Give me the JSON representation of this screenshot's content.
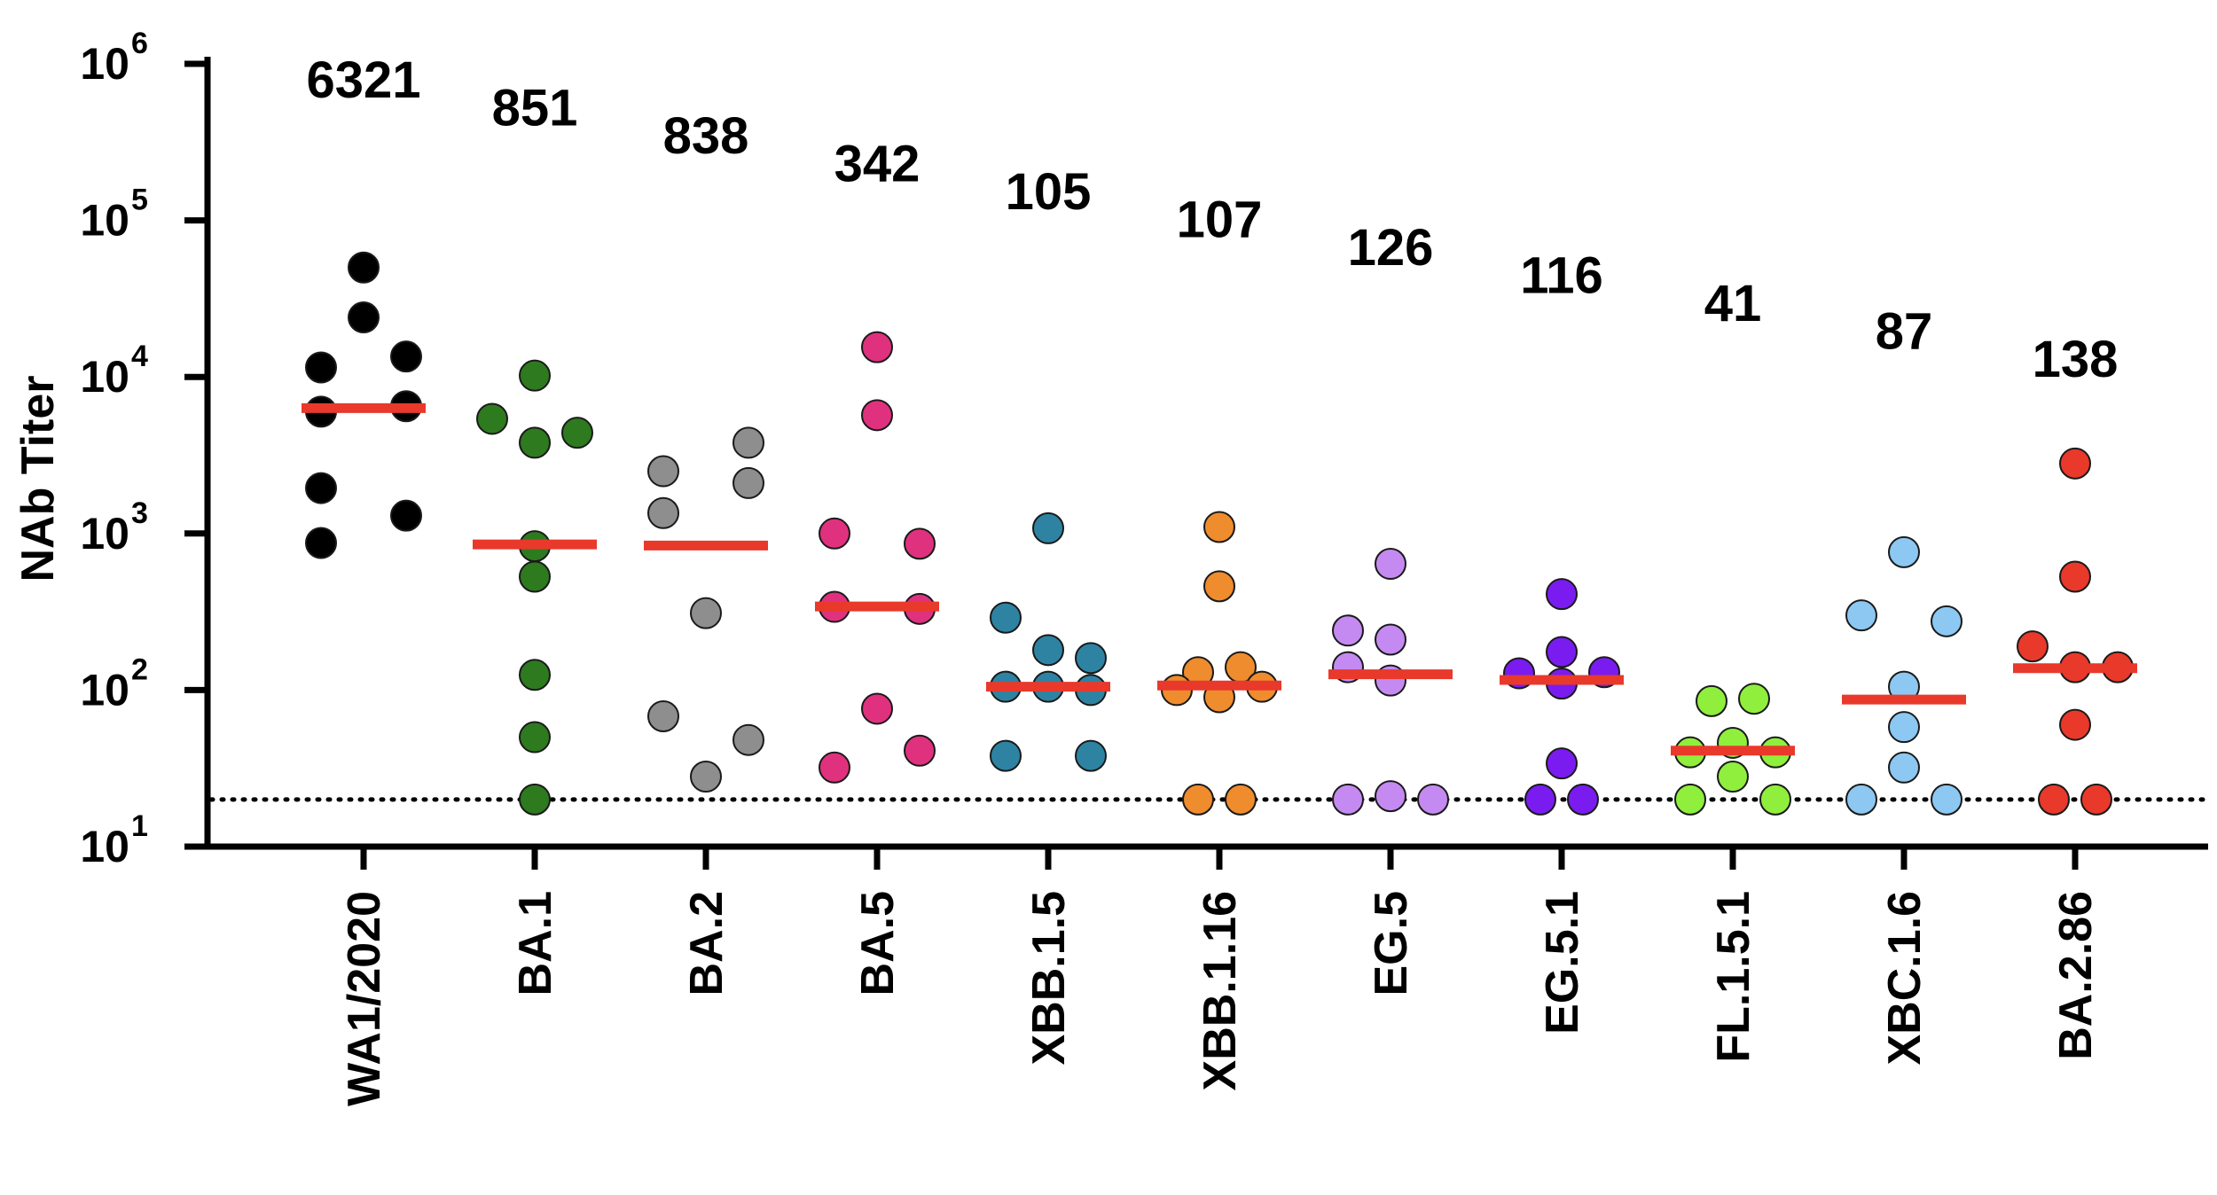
{
  "chart_data": {
    "type": "scatter",
    "ylabel": "NAb Titer",
    "y_scale": "log10",
    "ylim": [
      10,
      1000000
    ],
    "y_ticks": [
      {
        "value": 10,
        "base": "10",
        "exp": "1"
      },
      {
        "value": 100,
        "base": "10",
        "exp": "2"
      },
      {
        "value": 1000,
        "base": "10",
        "exp": "3"
      },
      {
        "value": 10000,
        "base": "10",
        "exp": "4"
      },
      {
        "value": 100000,
        "base": "10",
        "exp": "5"
      },
      {
        "value": 1000000,
        "base": "10",
        "exp": "6"
      }
    ],
    "limit_of_detection": 20,
    "median_line_color": "#e8392b",
    "groups": [
      {
        "label": "WA1/2020",
        "geomean": "6321",
        "median": 6321,
        "color": "#000000",
        "points": [
          [
            0,
            50000
          ],
          [
            0,
            24000
          ],
          [
            -1,
            11500
          ],
          [
            1,
            13500
          ],
          [
            -1,
            6000
          ],
          [
            1,
            6500
          ],
          [
            -1,
            1950
          ],
          [
            1,
            1300
          ],
          [
            -1,
            870
          ]
        ]
      },
      {
        "label": "BA.1",
        "geomean": "851",
        "median": 851,
        "color": "#2e7a1f",
        "points": [
          [
            0,
            10200
          ],
          [
            -1,
            5400
          ],
          [
            1,
            4400
          ],
          [
            0,
            3800
          ],
          [
            0,
            830
          ],
          [
            0,
            530
          ],
          [
            0,
            125
          ],
          [
            0,
            50
          ],
          [
            0,
            20
          ]
        ]
      },
      {
        "label": "BA.2",
        "geomean": "838",
        "median": 838,
        "color": "#8e8e8e",
        "points": [
          [
            -1,
            2500
          ],
          [
            1,
            3800
          ],
          [
            -1,
            1350
          ],
          [
            1,
            2100
          ],
          [
            0,
            310
          ],
          [
            -1,
            68
          ],
          [
            1,
            48
          ],
          [
            0,
            28
          ]
        ]
      },
      {
        "label": "BA.5",
        "geomean": "342",
        "median": 342,
        "color": "#e0317e",
        "points": [
          [
            0,
            15500
          ],
          [
            0,
            5700
          ],
          [
            -1,
            1000
          ],
          [
            1,
            860
          ],
          [
            -1,
            340
          ],
          [
            1,
            330
          ],
          [
            0,
            76
          ],
          [
            -1,
            32
          ],
          [
            1,
            41
          ]
        ]
      },
      {
        "label": "XBB.1.5",
        "geomean": "105",
        "median": 105,
        "color": "#2e83a3",
        "points": [
          [
            0,
            1080
          ],
          [
            -1,
            290
          ],
          [
            0,
            180
          ],
          [
            1,
            160
          ],
          [
            -1,
            105
          ],
          [
            1,
            100
          ],
          [
            -1,
            38
          ],
          [
            1,
            38
          ],
          [
            0,
            105
          ]
        ]
      },
      {
        "label": "XBB.1.16",
        "geomean": "107",
        "median": 107,
        "color": "#ef8c2d",
        "points": [
          [
            0,
            1100
          ],
          [
            0,
            460
          ],
          [
            -0.5,
            130
          ],
          [
            0.5,
            140
          ],
          [
            -1,
            100
          ],
          [
            1,
            105
          ],
          [
            0,
            90
          ],
          [
            -0.5,
            20
          ],
          [
            0.5,
            20
          ]
        ]
      },
      {
        "label": "EG.5",
        "geomean": "126",
        "median": 126,
        "color": "#c58af2",
        "points": [
          [
            0,
            640
          ],
          [
            -1,
            240
          ],
          [
            0,
            210
          ],
          [
            -1,
            140
          ],
          [
            0,
            115
          ],
          [
            -1,
            20
          ],
          [
            0,
            21
          ],
          [
            1,
            20
          ]
        ]
      },
      {
        "label": "EG.5.1",
        "geomean": "116",
        "median": 116,
        "color": "#7a1cef",
        "points": [
          [
            0,
            410
          ],
          [
            0,
            175
          ],
          [
            -1,
            128
          ],
          [
            1,
            130
          ],
          [
            0,
            110
          ],
          [
            0,
            34
          ],
          [
            -0.5,
            20
          ],
          [
            0.5,
            20
          ]
        ]
      },
      {
        "label": "FL.1.5.1",
        "geomean": "41",
        "median": 41,
        "color": "#8fef3c",
        "points": [
          [
            -0.5,
            85
          ],
          [
            0.5,
            88
          ],
          [
            0,
            46
          ],
          [
            -1,
            40
          ],
          [
            1,
            40
          ],
          [
            0,
            28
          ],
          [
            -1,
            20
          ],
          [
            1,
            20
          ]
        ]
      },
      {
        "label": "XBC.1.6",
        "geomean": "87",
        "median": 87,
        "color": "#8cc8f2",
        "points": [
          [
            0,
            760
          ],
          [
            -1,
            300
          ],
          [
            1,
            275
          ],
          [
            0,
            105
          ],
          [
            0,
            58
          ],
          [
            0,
            32
          ],
          [
            -1,
            20
          ],
          [
            1,
            20
          ]
        ]
      },
      {
        "label": "BA.2.86",
        "geomean": "138",
        "median": 138,
        "color": "#e8392b",
        "points": [
          [
            0,
            2800
          ],
          [
            0,
            530
          ],
          [
            -1,
            190
          ],
          [
            0,
            140
          ],
          [
            1,
            140
          ],
          [
            0,
            60
          ],
          [
            -0.5,
            20
          ],
          [
            0.5,
            20
          ]
        ]
      }
    ]
  }
}
